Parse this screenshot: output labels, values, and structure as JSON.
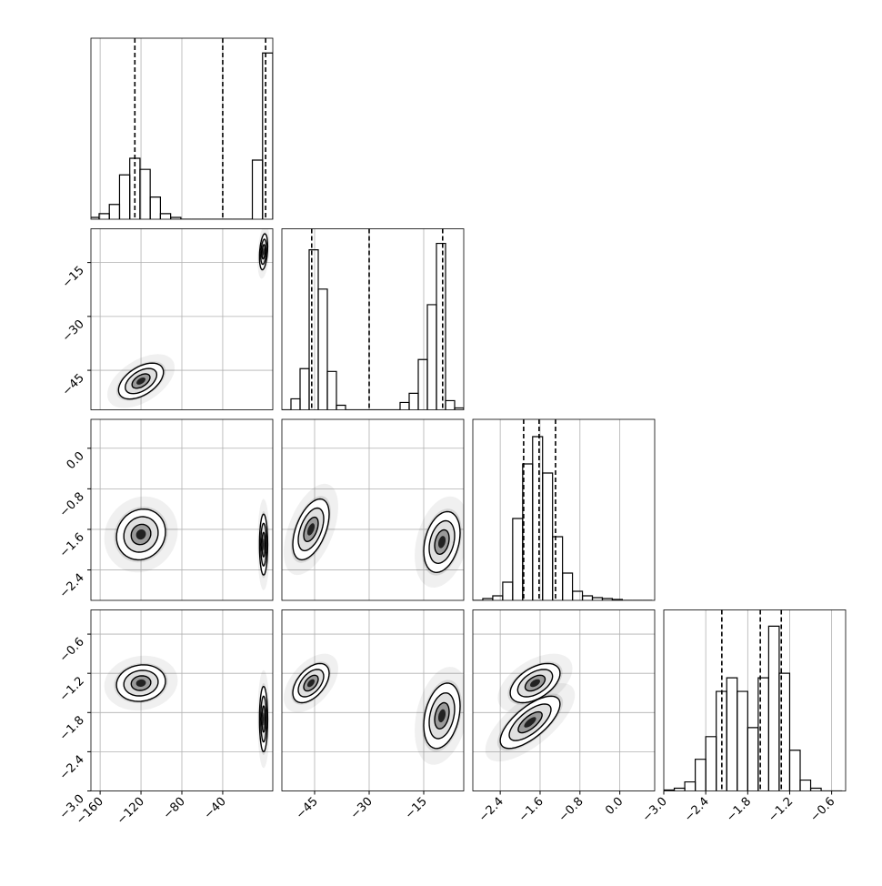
{
  "chart_data": {
    "type": "corner",
    "grid": true,
    "params": [
      {
        "xlim": [
          -169,
          9
        ],
        "xticks": [
          {
            "value": -160,
            "label": "−160"
          },
          {
            "value": -120,
            "label": "−120"
          },
          {
            "value": -80,
            "label": "−80"
          },
          {
            "value": -40,
            "label": "−40"
          }
        ],
        "hist": {
          "bins": [
            -171,
            -161,
            -151,
            -141,
            -131,
            -121,
            -111,
            -101,
            -91,
            -81,
            -71,
            -61,
            -51,
            -41,
            -31,
            -21,
            -11,
            -1,
            9
          ],
          "counts": [
            1,
            3,
            8,
            24,
            33,
            27,
            12,
            3,
            1,
            0,
            0,
            0,
            0,
            0,
            0,
            0,
            32,
            90
          ],
          "ylim": [
            0,
            98
          ]
        },
        "quantiles": [
          -126,
          -40,
          2
        ]
      },
      {
        "xlim": [
          -54,
          -4
        ],
        "ylim": [
          -56,
          -5.6
        ],
        "xticks": [
          {
            "value": -45,
            "label": "−45"
          },
          {
            "value": -30,
            "label": "−30"
          },
          {
            "value": -15,
            "label": "−15"
          }
        ],
        "yticks": [
          {
            "value": -45,
            "label": "−45"
          },
          {
            "value": -30,
            "label": "−30"
          },
          {
            "value": -15,
            "label": "−15"
          }
        ],
        "hist": {
          "bins": [
            -54,
            -51.5,
            -49,
            -46.5,
            -44,
            -41.5,
            -39,
            -36.5,
            -34,
            -31.5,
            -29,
            -26.5,
            -24,
            -21.5,
            -19,
            -16.5,
            -14,
            -11.5,
            -9,
            -6.5,
            -4
          ],
          "counts": [
            0,
            12,
            45,
            175,
            132,
            42,
            5,
            0,
            0,
            0,
            0,
            0,
            0,
            8,
            18,
            55,
            115,
            182,
            10,
            2
          ],
          "ylim": [
            0,
            198
          ]
        },
        "quantiles": [
          -45.8,
          -30,
          -9.8
        ]
      },
      {
        "xlim": [
          -2.95,
          0.7
        ],
        "ylim": [
          -3.0,
          0.57
        ],
        "xticks": [
          {
            "value": -2.4,
            "label": "−2.4"
          },
          {
            "value": -1.6,
            "label": "−1.6"
          },
          {
            "value": -0.8,
            "label": "−0.8"
          },
          {
            "value": 0,
            "label": "0.0"
          }
        ],
        "yticks": [
          {
            "value": 0,
            "label": "0.0"
          },
          {
            "value": -0.8,
            "label": "−0.8"
          },
          {
            "value": -1.6,
            "label": "−1.6"
          },
          {
            "value": -2.4,
            "label": "−2.4"
          }
        ],
        "hist": {
          "bins": [
            -2.95,
            -2.75,
            -2.55,
            -2.35,
            -2.15,
            -1.95,
            -1.75,
            -1.55,
            -1.35,
            -1.15,
            -0.95,
            -0.75,
            -0.55,
            -0.35,
            -0.15,
            0.05,
            0.25,
            0.45,
            0.65
          ],
          "counts": [
            0,
            2,
            5,
            20,
            90,
            150,
            180,
            140,
            70,
            30,
            10,
            5,
            3,
            2,
            1,
            0,
            0,
            0
          ],
          "ylim": [
            0,
            199
          ]
        },
        "quantiles": [
          -1.93,
          -1.62,
          -1.29
        ]
      },
      {
        "xlim": [
          -3.0,
          -0.4
        ],
        "ylim": [
          -3.0,
          -0.23
        ],
        "xticks": [
          {
            "value": -3.0,
            "label": "−3.0"
          },
          {
            "value": -2.4,
            "label": "−2.4"
          },
          {
            "value": -1.8,
            "label": "−1.8"
          },
          {
            "value": -1.2,
            "label": "−1.2"
          },
          {
            "value": -0.6,
            "label": "−0.6"
          }
        ],
        "yticks": [
          {
            "value": -0.6,
            "label": "−0.6"
          },
          {
            "value": -1.2,
            "label": "−1.2"
          },
          {
            "value": -1.8,
            "label": "−1.8"
          },
          {
            "value": -2.4,
            "label": "−2.4"
          },
          {
            "value": -3.0,
            "label": "−3.0"
          }
        ],
        "hist": {
          "bins": [
            -3.0,
            -2.85,
            -2.7,
            -2.55,
            -2.4,
            -2.25,
            -2.1,
            -1.95,
            -1.8,
            -1.65,
            -1.5,
            -1.35,
            -1.2,
            -1.05,
            -0.9,
            -0.75,
            -0.6,
            -0.45
          ],
          "counts": [
            1,
            3,
            10,
            35,
            60,
            110,
            125,
            110,
            70,
            125,
            182,
            130,
            45,
            12,
            3,
            0,
            0
          ],
          "ylim": [
            0,
            200
          ]
        },
        "quantiles": [
          -2.17,
          -1.62,
          -1.32
        ]
      }
    ],
    "pairs": [
      [
        {
          "clusters": [
            {
              "cx": -120,
              "cy": -48,
              "sx": 11,
              "sy": 2.5,
              "rho": 0.5
            },
            {
              "cx": 0,
              "cy": -12,
              "sx": 2,
              "sy": 2.5,
              "rho": 0.3
            }
          ]
        }
      ],
      [
        {
          "clusters": [
            {
              "cx": -120,
              "cy": -1.7,
              "sx": 12,
              "sy": 0.25,
              "rho": 0.1
            },
            {
              "cx": 0,
              "cy": -1.9,
              "sx": 2,
              "sy": 0.3,
              "rho": 0
            }
          ]
        },
        {
          "clusters": [
            {
              "cx": -46,
              "cy": -1.6,
              "sx": 2.5,
              "sy": 0.3,
              "rho": 0.5
            },
            {
              "cx": -10,
              "cy": -1.85,
              "sx": 2.5,
              "sy": 0.3,
              "rho": 0.3
            }
          ]
        }
      ],
      [
        {
          "clusters": [
            {
              "cx": -120,
              "cy": -1.35,
              "sx": 12,
              "sy": 0.14,
              "rho": 0.1
            },
            {
              "cx": 0,
              "cy": -1.9,
              "sx": 2,
              "sy": 0.25,
              "rho": 0
            }
          ]
        },
        {
          "clusters": [
            {
              "cx": -46,
              "cy": -1.35,
              "sx": 2.5,
              "sy": 0.15,
              "rho": 0.5
            },
            {
              "cx": -10,
              "cy": -1.85,
              "sx": 2.5,
              "sy": 0.25,
              "rho": 0.3
            }
          ]
        },
        {
          "clusters": [
            {
              "cx": -1.7,
              "cy": -1.35,
              "sx": 0.25,
              "sy": 0.15,
              "rho": 0.5
            },
            {
              "cx": -1.8,
              "cy": -1.95,
              "sx": 0.3,
              "sy": 0.2,
              "rho": 0.7
            }
          ]
        }
      ]
    ]
  }
}
